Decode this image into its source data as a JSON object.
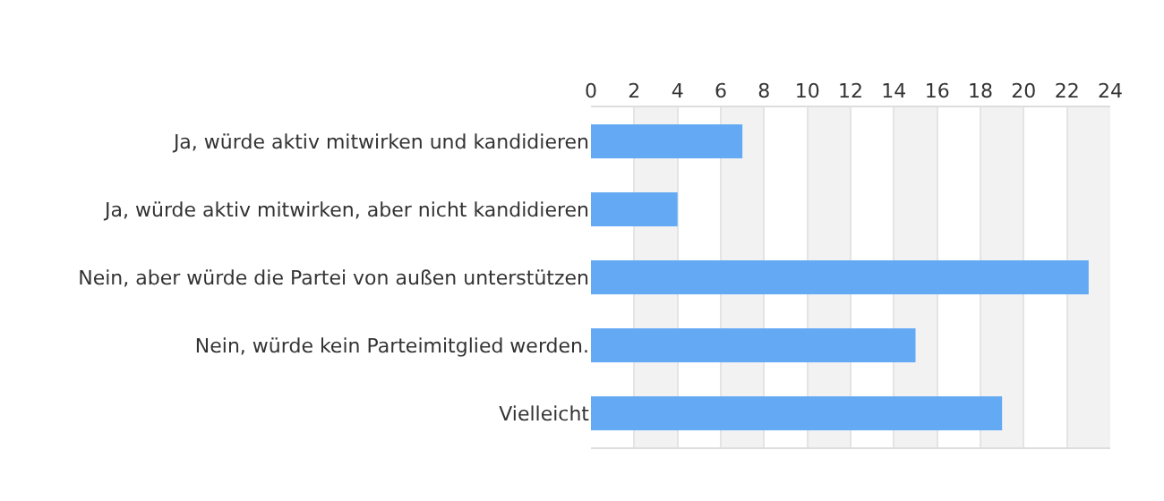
{
  "chart_data": {
    "type": "bar",
    "orientation": "horizontal",
    "categories": [
      "Ja, würde aktiv mitwirken und kandidieren",
      "Ja, würde aktiv mitwirken, aber nicht kandidieren",
      "Nein, aber würde die Partei von außen unterstützen",
      "Nein, würde kein Parteimitglied werden.",
      "Vielleicht"
    ],
    "values": [
      7,
      4,
      23,
      15,
      19
    ],
    "color": "#63a9f4",
    "xlim": [
      0,
      24
    ],
    "xticks": [
      0,
      2,
      4,
      6,
      8,
      10,
      12,
      14,
      16,
      18,
      20,
      22,
      24
    ],
    "grid": "x"
  }
}
